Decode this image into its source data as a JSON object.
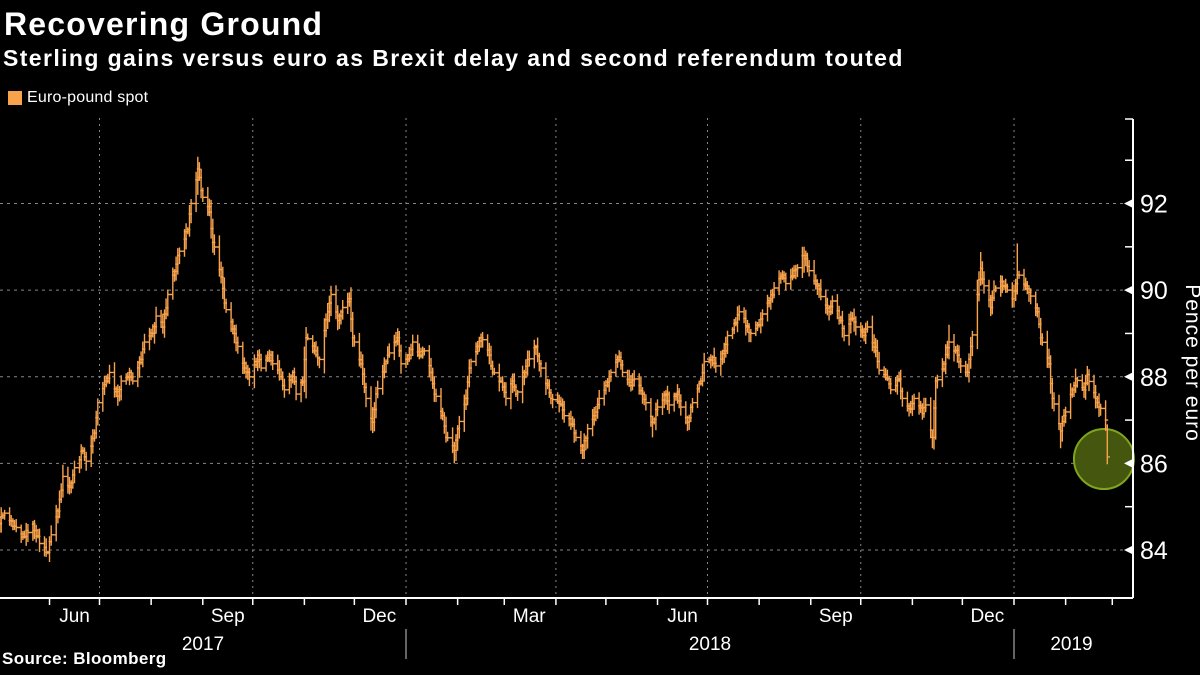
{
  "header": {
    "title": "Recovering Ground",
    "subtitle": "Sterling gains versus euro as Brexit delay and second referendum touted"
  },
  "legend": {
    "label": "Euro-pound spot",
    "swatch_color": "#f8a24c"
  },
  "source": "Source: Bloomberg",
  "chart_data": {
    "type": "ohlc_bar",
    "title": "Recovering Ground",
    "series_name": "Euro-pound spot",
    "ylabel": "Pence per euro",
    "ylim": [
      82.9,
      94.0
    ],
    "y_ticks_labeled": [
      84,
      86,
      88,
      90,
      92
    ],
    "y_ticks_minor": [
      85,
      87,
      89,
      91,
      93
    ],
    "y_gridlines": [
      84,
      86,
      88,
      90,
      92
    ],
    "x_start": "2017-05-01",
    "x_end": "2019-03-11",
    "x_labels": [
      {
        "text": "Jun",
        "at": "2017-06-16"
      },
      {
        "text": "Sep",
        "at": "2017-09-16"
      },
      {
        "text": "Dec",
        "at": "2017-12-16"
      },
      {
        "text": "Mar",
        "at": "2018-03-16"
      },
      {
        "text": "Jun",
        "at": "2018-06-16"
      },
      {
        "text": "Sep",
        "at": "2018-09-16"
      },
      {
        "text": "Dec",
        "at": "2018-12-16"
      }
    ],
    "year_labels": [
      {
        "text": "2017",
        "span": [
          "2017-05-01",
          "2018-01-01"
        ]
      },
      {
        "text": "2018",
        "span": [
          "2018-01-01",
          "2019-01-01"
        ]
      },
      {
        "text": "2019",
        "span": [
          "2019-01-01",
          "2019-03-11"
        ]
      }
    ],
    "year_dividers": [
      "2018-01-01",
      "2019-01-01"
    ],
    "quarter_gridlines": [
      "2017-07-01",
      "2017-10-01",
      "2018-01-01",
      "2018-04-01",
      "2018-07-01",
      "2018-10-01",
      "2019-01-01"
    ],
    "bar_color": "#f8a24c",
    "grid_color": "#868686",
    "axis_color": "#ffffff",
    "highlight_circle": {
      "date": "2019-02-24",
      "value": 86.1,
      "radius_px": 30,
      "fill": "#45570f",
      "stroke": "#7fa51d"
    },
    "anchors": [
      [
        "2017-05-01",
        84.6
      ],
      [
        "2017-05-05",
        84.85
      ],
      [
        "2017-05-10",
        84.55
      ],
      [
        "2017-05-16",
        84.3
      ],
      [
        "2017-05-22",
        84.6
      ],
      [
        "2017-05-26",
        84.15
      ],
      [
        "2017-05-31",
        83.95
      ],
      [
        "2017-06-02",
        84.35
      ],
      [
        "2017-06-06",
        84.9
      ],
      [
        "2017-06-09",
        85.7
      ],
      [
        "2017-06-13",
        85.45
      ],
      [
        "2017-06-16",
        85.9
      ],
      [
        "2017-06-21",
        86.3
      ],
      [
        "2017-06-23",
        86.05
      ],
      [
        "2017-06-28",
        86.7
      ],
      [
        "2017-06-30",
        87.4
      ],
      [
        "2017-07-05",
        87.9
      ],
      [
        "2017-07-07",
        88.1
      ],
      [
        "2017-07-12",
        87.55
      ],
      [
        "2017-07-14",
        87.9
      ],
      [
        "2017-07-19",
        88.1
      ],
      [
        "2017-07-21",
        87.9
      ],
      [
        "2017-07-26",
        88.4
      ],
      [
        "2017-07-28",
        88.8
      ],
      [
        "2017-08-02",
        89.0
      ],
      [
        "2017-08-04",
        89.4
      ],
      [
        "2017-08-08",
        89.15
      ],
      [
        "2017-08-11",
        89.9
      ],
      [
        "2017-08-16",
        90.6
      ],
      [
        "2017-08-18",
        90.9
      ],
      [
        "2017-08-23",
        91.4
      ],
      [
        "2017-08-25",
        92.0
      ],
      [
        "2017-08-29",
        92.8,
        93.08,
        92.2
      ],
      [
        "2017-08-31",
        92.3
      ],
      [
        "2017-09-05",
        91.8
      ],
      [
        "2017-09-07",
        91.1
      ],
      [
        "2017-09-12",
        90.3
      ],
      [
        "2017-09-14",
        89.7
      ],
      [
        "2017-09-19",
        89.1
      ],
      [
        "2017-09-22",
        88.7
      ],
      [
        "2017-09-26",
        88.2
      ],
      [
        "2017-09-29",
        88.0
      ],
      [
        "2017-10-04",
        88.5
      ],
      [
        "2017-10-06",
        88.2
      ],
      [
        "2017-10-11",
        88.5
      ],
      [
        "2017-10-13",
        88.3
      ],
      [
        "2017-10-18",
        88.0
      ],
      [
        "2017-10-20",
        87.7
      ],
      [
        "2017-10-25",
        88.1
      ],
      [
        "2017-10-27",
        87.6
      ],
      [
        "2017-10-31",
        87.9
      ],
      [
        "2017-11-02",
        88.9,
        89.15,
        87.5
      ],
      [
        "2017-11-07",
        88.6
      ],
      [
        "2017-11-10",
        88.4
      ],
      [
        "2017-11-15",
        89.5
      ],
      [
        "2017-11-17",
        89.9,
        90.1,
        89.4
      ],
      [
        "2017-11-21",
        89.3
      ],
      [
        "2017-11-24",
        89.6
      ],
      [
        "2017-11-28",
        89.8
      ],
      [
        "2017-11-30",
        88.9
      ],
      [
        "2017-12-05",
        88.3
      ],
      [
        "2017-12-08",
        87.5
      ],
      [
        "2017-12-12",
        86.95,
        87.3,
        86.7
      ],
      [
        "2017-12-14",
        87.6
      ],
      [
        "2017-12-19",
        88.3
      ],
      [
        "2017-12-21",
        88.5
      ],
      [
        "2017-12-27",
        88.9
      ],
      [
        "2017-12-29",
        88.3
      ],
      [
        "2018-01-03",
        88.5
      ],
      [
        "2018-01-05",
        88.8
      ],
      [
        "2018-01-09",
        88.5
      ],
      [
        "2018-01-12",
        88.6
      ],
      [
        "2018-01-16",
        88.1
      ],
      [
        "2018-01-18",
        87.6
      ],
      [
        "2018-01-23",
        87.1
      ],
      [
        "2018-01-25",
        86.6
      ],
      [
        "2018-01-30",
        86.3,
        86.5,
        86.0
      ],
      [
        "2018-02-01",
        86.8
      ],
      [
        "2018-02-06",
        87.5
      ],
      [
        "2018-02-08",
        88.2
      ],
      [
        "2018-02-13",
        88.7
      ],
      [
        "2018-02-15",
        88.9
      ],
      [
        "2018-02-20",
        88.5
      ],
      [
        "2018-02-22",
        88.1
      ],
      [
        "2018-02-27",
        87.9
      ],
      [
        "2018-03-02",
        87.5
      ],
      [
        "2018-03-06",
        87.9
      ],
      [
        "2018-03-08",
        87.6
      ],
      [
        "2018-03-13",
        88.1
      ],
      [
        "2018-03-15",
        88.4
      ],
      [
        "2018-03-20",
        88.7
      ],
      [
        "2018-03-22",
        88.3
      ],
      [
        "2018-03-27",
        87.8
      ],
      [
        "2018-03-29",
        87.5
      ],
      [
        "2018-04-04",
        87.35
      ],
      [
        "2018-04-06",
        87.1
      ],
      [
        "2018-04-11",
        86.9
      ],
      [
        "2018-04-13",
        86.6
      ],
      [
        "2018-04-17",
        86.3,
        86.45,
        86.1
      ],
      [
        "2018-04-20",
        86.8
      ],
      [
        "2018-04-24",
        87.1
      ],
      [
        "2018-04-27",
        87.5
      ],
      [
        "2018-05-01",
        87.8
      ],
      [
        "2018-05-04",
        88.1
      ],
      [
        "2018-05-09",
        88.45
      ],
      [
        "2018-05-11",
        88.1
      ],
      [
        "2018-05-16",
        87.8
      ],
      [
        "2018-05-18",
        87.95
      ],
      [
        "2018-05-23",
        87.6
      ],
      [
        "2018-05-25",
        87.4
      ],
      [
        "2018-05-29",
        86.95,
        87.1,
        86.6
      ],
      [
        "2018-06-01",
        87.3
      ],
      [
        "2018-06-06",
        87.6
      ],
      [
        "2018-06-08",
        87.35
      ],
      [
        "2018-06-13",
        87.65
      ],
      [
        "2018-06-15",
        87.3
      ],
      [
        "2018-06-19",
        86.95,
        87.1,
        86.75
      ],
      [
        "2018-06-22",
        87.4
      ],
      [
        "2018-06-27",
        87.9
      ],
      [
        "2018-06-29",
        88.35
      ],
      [
        "2018-07-04",
        88.45
      ],
      [
        "2018-07-06",
        88.25
      ],
      [
        "2018-07-11",
        88.6
      ],
      [
        "2018-07-13",
        88.95
      ],
      [
        "2018-07-18",
        89.25
      ],
      [
        "2018-07-20",
        89.5,
        89.65,
        89.3
      ],
      [
        "2018-07-25",
        89.15
      ],
      [
        "2018-07-27",
        89.0
      ],
      [
        "2018-08-01",
        89.2
      ],
      [
        "2018-08-03",
        89.45
      ],
      [
        "2018-08-08",
        89.8
      ],
      [
        "2018-08-10",
        90.05
      ],
      [
        "2018-08-15",
        90.35
      ],
      [
        "2018-08-17",
        90.15
      ],
      [
        "2018-08-22",
        90.45
      ],
      [
        "2018-08-28",
        90.8,
        91.0,
        90.4
      ],
      [
        "2018-08-31",
        90.45
      ],
      [
        "2018-09-05",
        90.1
      ],
      [
        "2018-09-07",
        89.85
      ],
      [
        "2018-09-12",
        89.5
      ],
      [
        "2018-09-14",
        89.75
      ],
      [
        "2018-09-19",
        89.3
      ],
      [
        "2018-09-21",
        88.95
      ],
      [
        "2018-09-26",
        89.35
      ],
      [
        "2018-09-28",
        89.15
      ],
      [
        "2018-10-03",
        88.95
      ],
      [
        "2018-10-05",
        89.15
      ],
      [
        "2018-10-10",
        88.6
      ],
      [
        "2018-10-12",
        88.15
      ],
      [
        "2018-10-17",
        87.95
      ],
      [
        "2018-10-19",
        87.7
      ],
      [
        "2018-10-24",
        87.95
      ],
      [
        "2018-10-26",
        87.5
      ],
      [
        "2018-10-31",
        87.25
      ],
      [
        "2018-11-02",
        87.5
      ],
      [
        "2018-11-07",
        87.15
      ],
      [
        "2018-11-09",
        87.35
      ],
      [
        "2018-11-13",
        86.6,
        86.75,
        86.35
      ],
      [
        "2018-11-15",
        87.9,
        88.0,
        86.55
      ],
      [
        "2018-11-20",
        88.3
      ],
      [
        "2018-11-23",
        88.8,
        89.2,
        88.4
      ],
      [
        "2018-11-28",
        88.5
      ],
      [
        "2018-11-30",
        88.25
      ],
      [
        "2018-12-04",
        88.1
      ],
      [
        "2018-12-06",
        88.7
      ],
      [
        "2018-12-10",
        89.9
      ],
      [
        "2018-12-12",
        90.5,
        90.88,
        90.1
      ],
      [
        "2018-12-14",
        90.1
      ],
      [
        "2018-12-18",
        89.6
      ],
      [
        "2018-12-20",
        90.0
      ],
      [
        "2018-12-24",
        90.2
      ],
      [
        "2018-12-28",
        90.0
      ],
      [
        "2018-12-31",
        89.8
      ],
      [
        "2019-01-02",
        90.15
      ],
      [
        "2019-01-03",
        90.35,
        91.08,
        89.9
      ],
      [
        "2019-01-08",
        90.1
      ],
      [
        "2019-01-10",
        89.95
      ],
      [
        "2019-01-15",
        89.5
      ],
      [
        "2019-01-17",
        88.9
      ],
      [
        "2019-01-22",
        88.3
      ],
      [
        "2019-01-24",
        87.5
      ],
      [
        "2019-01-29",
        86.75,
        86.9,
        86.35
      ],
      [
        "2019-01-31",
        87.1
      ],
      [
        "2019-02-05",
        87.7
      ],
      [
        "2019-02-07",
        87.95
      ],
      [
        "2019-02-12",
        87.7
      ],
      [
        "2019-02-14",
        88.05,
        88.25,
        87.8
      ],
      [
        "2019-02-19",
        87.5
      ],
      [
        "2019-02-21",
        87.3
      ],
      [
        "2019-02-25",
        87.0
      ],
      [
        "2019-02-26",
        86.15,
        86.9,
        85.98
      ]
    ]
  }
}
